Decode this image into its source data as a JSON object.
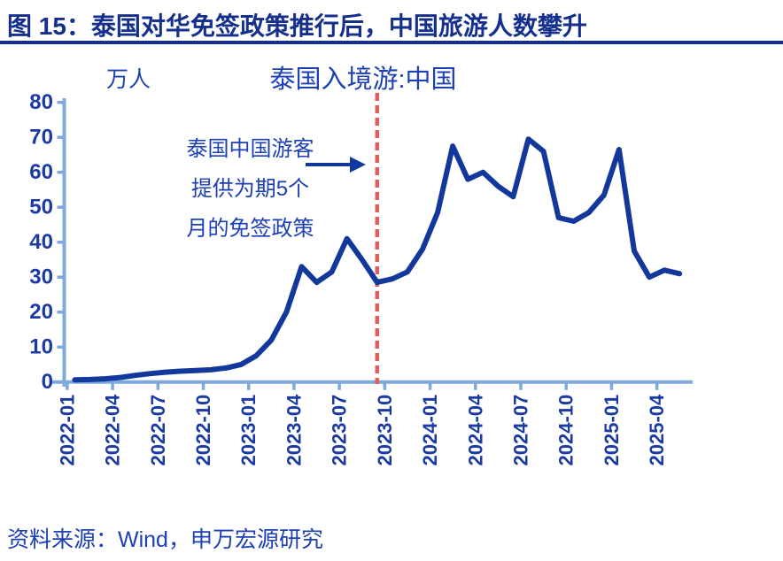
{
  "header": {
    "title": "图 15：泰国对华免签政策推行后，中国旅游人数攀升"
  },
  "chart": {
    "unit_label": "万人",
    "title": "泰国入境游:中国",
    "annotation": {
      "lines": [
        "泰国中国游客",
        "提供为期5个",
        "月的免签政策"
      ]
    }
  },
  "footer": {
    "source": "资料来源：Wind，申万宏源研究"
  },
  "colors": {
    "header_navy": "#152F8C",
    "text_blue": "#1D40B4",
    "tick_label_blue": "#1B3AA4",
    "line_blue": "#12389B",
    "axis_light_blue": "#7FA8DB",
    "event_line_red": "#DD5F5F"
  },
  "chart_data": {
    "type": "line",
    "title": "泰国入境游:中国",
    "ylabel_unit": "万人",
    "x": [
      "2022-01",
      "2022-02",
      "2022-03",
      "2022-04",
      "2022-05",
      "2022-06",
      "2022-07",
      "2022-08",
      "2022-09",
      "2022-10",
      "2022-11",
      "2022-12",
      "2023-01",
      "2023-02",
      "2023-03",
      "2023-04",
      "2023-05",
      "2023-06",
      "2023-07",
      "2023-08",
      "2023-09",
      "2023-10",
      "2023-11",
      "2023-12",
      "2024-01",
      "2024-02",
      "2024-03",
      "2024-04",
      "2024-05",
      "2024-06",
      "2024-07",
      "2024-08",
      "2024-09",
      "2024-10",
      "2024-11",
      "2024-12",
      "2025-01",
      "2025-02",
      "2025-03",
      "2025-04",
      "2025-05"
    ],
    "values": [
      0.6,
      0.7,
      0.9,
      1.3,
      1.9,
      2.4,
      2.8,
      3.1,
      3.3,
      3.5,
      4.0,
      5.0,
      7.5,
      12,
      20,
      33,
      28.5,
      31.5,
      41,
      35,
      28.5,
      29.5,
      31.5,
      38,
      48.5,
      67.5,
      58,
      60,
      56,
      53,
      69.5,
      66,
      47,
      46,
      48.5,
      53.5,
      66.5,
      37.5,
      30,
      32,
      31
    ],
    "x_tick_labels": [
      "2022-01",
      "2022-04",
      "2022-07",
      "2022-10",
      "2023-01",
      "2023-04",
      "2023-07",
      "2023-10",
      "2024-01",
      "2024-04",
      "2024-07",
      "2024-10",
      "2025-01",
      "2025-04"
    ],
    "ylim": [
      0,
      80
    ],
    "y_tick_step": 10,
    "grid": false,
    "legend": "none",
    "event_line_month": "2023-09",
    "event_line_style": "dashed-red-vertical"
  }
}
